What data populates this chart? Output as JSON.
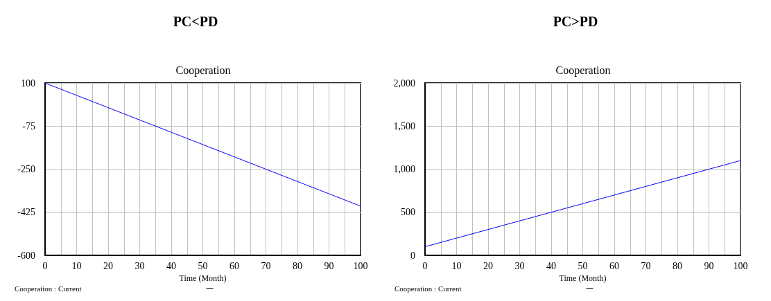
{
  "chart_data": [
    {
      "type": "line",
      "title": "PC<PD",
      "subtitle": "Cooperation",
      "xlabel": "Time (Month)",
      "x": [
        0,
        10,
        20,
        30,
        40,
        50,
        60,
        70,
        80,
        90,
        100
      ],
      "series": [
        {
          "name": "Cooperation : Current",
          "color": "#0000ff",
          "values": [
            100,
            50,
            0,
            -50,
            -100,
            -150,
            -200,
            -250,
            -300,
            -350,
            -400
          ]
        }
      ],
      "xlim": [
        0,
        100
      ],
      "xticks": [
        0,
        {
          "value": 5,
          "label": null
        },
        10,
        {
          "value": 15,
          "label": null
        },
        20,
        {
          "value": 25,
          "label": null
        },
        30,
        {
          "value": 35,
          "label": null
        },
        40,
        {
          "value": 45,
          "label": null
        },
        50,
        {
          "value": 55,
          "label": null
        },
        60,
        {
          "value": 65,
          "label": null
        },
        70,
        {
          "value": 75,
          "label": null
        },
        80,
        {
          "value": 85,
          "label": null
        },
        90,
        {
          "value": 95,
          "label": null
        },
        100
      ],
      "ylim": [
        -600,
        100
      ],
      "yticks": [
        -600,
        -425,
        -250,
        -75,
        100
      ],
      "grid": true,
      "legend": "bottom left",
      "marker": "none",
      "line_style": "solid"
    },
    {
      "type": "line",
      "title": "PC>PD",
      "subtitle": "Cooperation",
      "xlabel": "Time (Month)",
      "x": [
        0,
        10,
        20,
        30,
        40,
        50,
        60,
        70,
        80,
        90,
        100
      ],
      "series": [
        {
          "name": "Cooperation : Current",
          "color": "#0000ff",
          "values": [
            100,
            200,
            300,
            400,
            500,
            600,
            700,
            800,
            900,
            1000,
            1100
          ]
        }
      ],
      "xlim": [
        0,
        100
      ],
      "xticks": [
        0,
        {
          "value": 5,
          "label": null
        },
        10,
        {
          "value": 15,
          "label": null
        },
        20,
        {
          "value": 25,
          "label": null
        },
        30,
        {
          "value": 35,
          "label": null
        },
        40,
        {
          "value": 45,
          "label": null
        },
        50,
        {
          "value": 55,
          "label": null
        },
        60,
        {
          "value": 65,
          "label": null
        },
        70,
        {
          "value": 75,
          "label": null
        },
        80,
        {
          "value": 85,
          "label": null
        },
        90,
        {
          "value": 95,
          "label": null
        },
        100
      ],
      "ylim": [
        0,
        2000
      ],
      "yticks": [
        0,
        500,
        {
          "value": 1000,
          "label": "1,000"
        },
        {
          "value": 1500,
          "label": "1,500"
        },
        {
          "value": 2000,
          "label": "2,000"
        }
      ],
      "grid": true,
      "legend": "bottom left",
      "marker": "none",
      "line_style": "solid"
    }
  ]
}
